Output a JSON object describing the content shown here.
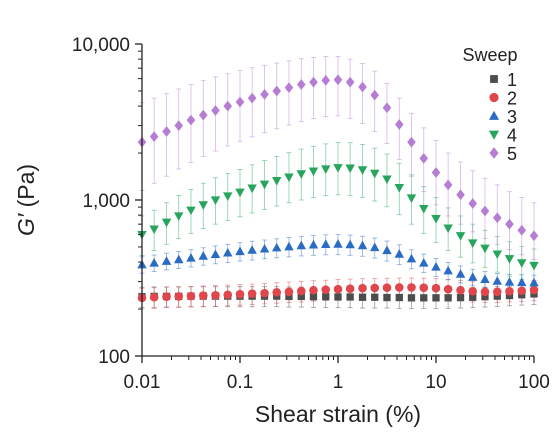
{
  "chart_data": {
    "type": "scatter",
    "xscale": "log",
    "yscale": "log",
    "xlim": [
      0.01,
      100
    ],
    "ylim": [
      100,
      10000
    ],
    "xlabel": "Shear strain (%)",
    "ylabel_italic": "G′",
    "ylabel_unit": " (Pa)",
    "x_ticks": [
      {
        "value": 0.01,
        "label": "0.01"
      },
      {
        "value": 0.1,
        "label": "0.1"
      },
      {
        "value": 1,
        "label": "1"
      },
      {
        "value": 10,
        "label": "10"
      },
      {
        "value": 100,
        "label": "100"
      }
    ],
    "y_ticks": [
      {
        "value": 100,
        "label": "100"
      },
      {
        "value": 1000,
        "label": "1,000"
      },
      {
        "value": 10000,
        "label": "10,000"
      }
    ],
    "legend": {
      "title": "Sweep",
      "position": "top-right"
    },
    "grid": false,
    "x": [
      0.01,
      0.0133,
      0.0178,
      0.0237,
      0.0316,
      0.0422,
      0.0562,
      0.075,
      0.1,
      0.133,
      0.178,
      0.237,
      0.316,
      0.422,
      0.562,
      0.75,
      1,
      1.33,
      1.78,
      2.37,
      3.16,
      4.22,
      5.62,
      7.5,
      10,
      13.3,
      17.8,
      23.7,
      31.6,
      42.2,
      56.2,
      75,
      100
    ],
    "series": [
      {
        "name": "1",
        "color": "#4d4d4d",
        "marker": "square",
        "values": [
          240,
          241,
          241,
          241,
          242,
          242,
          242,
          242,
          242,
          242,
          242,
          242,
          241,
          241,
          240,
          240,
          239,
          239,
          238,
          238,
          237,
          237,
          236,
          236,
          236,
          236,
          237,
          238,
          240,
          242,
          244,
          247,
          250
        ],
        "err_low": [
          205,
          205,
          206,
          206,
          207,
          207,
          207,
          207,
          207,
          207,
          207,
          207,
          206,
          206,
          205,
          205,
          204,
          204,
          203,
          203,
          203,
          202,
          202,
          202,
          202,
          202,
          203,
          204,
          206,
          208,
          210,
          212,
          214
        ],
        "err_high": [
          276,
          277,
          277,
          277,
          278,
          278,
          278,
          278,
          278,
          278,
          278,
          278,
          277,
          277,
          276,
          276,
          275,
          275,
          274,
          274,
          273,
          273,
          272,
          272,
          272,
          272,
          273,
          274,
          276,
          278,
          280,
          284,
          288
        ]
      },
      {
        "name": "2",
        "color": "#e0474c",
        "marker": "circle",
        "values": [
          236,
          238,
          240,
          241,
          242,
          244,
          245,
          247,
          249,
          251,
          253,
          256,
          258,
          261,
          264,
          266,
          268,
          270,
          272,
          273,
          274,
          275,
          275,
          274,
          272,
          268,
          264,
          260,
          258,
          258,
          260,
          262,
          265
        ],
        "err_low": [
          200,
          202,
          204,
          205,
          206,
          207,
          208,
          210,
          212,
          214,
          216,
          218,
          220,
          222,
          225,
          227,
          228,
          230,
          232,
          233,
          234,
          234,
          234,
          233,
          231,
          228,
          225,
          222,
          220,
          220,
          222,
          223,
          226
        ],
        "err_high": [
          272,
          274,
          277,
          278,
          279,
          281,
          283,
          285,
          287,
          289,
          292,
          295,
          298,
          301,
          304,
          306,
          309,
          311,
          313,
          314,
          315,
          316,
          316,
          315,
          313,
          309,
          304,
          299,
          297,
          297,
          299,
          302,
          305
        ]
      },
      {
        "name": "3",
        "color": "#2a6bc4",
        "marker": "triangle-up",
        "values": [
          385,
          395,
          405,
          415,
          425,
          437,
          448,
          458,
          468,
          477,
          486,
          494,
          502,
          510,
          516,
          520,
          522,
          518,
          510,
          496,
          475,
          450,
          420,
          395,
          372,
          352,
          335,
          320,
          310,
          302,
          298,
          296,
          295
        ],
        "err_low": [
          340,
          348,
          356,
          364,
          372,
          382,
          390,
          398,
          406,
          412,
          420,
          426,
          432,
          438,
          442,
          445,
          446,
          442,
          436,
          424,
          406,
          386,
          362,
          342,
          324,
          308,
          294,
          282,
          274,
          268,
          264,
          262,
          262
        ],
        "err_high": [
          432,
          444,
          456,
          468,
          480,
          494,
          508,
          520,
          532,
          544,
          554,
          564,
          574,
          584,
          592,
          598,
          600,
          596,
          586,
          570,
          546,
          516,
          480,
          450,
          422,
          398,
          378,
          360,
          348,
          338,
          334,
          332,
          330
        ]
      },
      {
        "name": "4",
        "color": "#27a55f",
        "marker": "triangle-down",
        "values": [
          600,
          650,
          720,
          790,
          860,
          930,
          1000,
          1060,
          1120,
          1190,
          1260,
          1330,
          1400,
          1470,
          1530,
          1580,
          1610,
          1600,
          1560,
          1480,
          1360,
          1200,
          1030,
          880,
          760,
          660,
          590,
          530,
          490,
          450,
          420,
          395,
          380
        ],
        "err_low": [
          440,
          475,
          520,
          565,
          610,
          655,
          700,
          740,
          780,
          825,
          870,
          915,
          960,
          1000,
          1035,
          1065,
          1080,
          1070,
          1040,
          985,
          905,
          805,
          700,
          610,
          535,
          475,
          430,
          395,
          370,
          345,
          325,
          310,
          300
        ],
        "err_high": [
          790,
          860,
          960,
          1070,
          1170,
          1280,
          1390,
          1480,
          1570,
          1680,
          1790,
          1900,
          2010,
          2120,
          2210,
          2290,
          2340,
          2330,
          2270,
          2150,
          1970,
          1720,
          1450,
          1220,
          1040,
          890,
          790,
          700,
          640,
          585,
          540,
          505,
          485
        ]
      },
      {
        "name": "5",
        "color": "#b57ed4",
        "marker": "diamond",
        "values": [
          2350,
          2550,
          2750,
          3000,
          3250,
          3500,
          3750,
          4000,
          4250,
          4500,
          4750,
          5000,
          5250,
          5500,
          5700,
          5850,
          5900,
          5700,
          5300,
          4700,
          3900,
          3050,
          2350,
          1850,
          1500,
          1250,
          1080,
          950,
          850,
          770,
          700,
          640,
          590
        ],
        "err_low": [
          1150,
          1280,
          1420,
          1580,
          1740,
          1900,
          2060,
          2220,
          2380,
          2540,
          2700,
          2860,
          3020,
          3180,
          3320,
          3420,
          3460,
          3340,
          3100,
          2750,
          2300,
          1820,
          1420,
          1130,
          930,
          790,
          700,
          625,
          565,
          520,
          480,
          445,
          415
        ],
        "err_high": [
          4200,
          4500,
          4800,
          5150,
          5500,
          5850,
          6150,
          6450,
          6750,
          7050,
          7300,
          7550,
          7800,
          8050,
          8200,
          8300,
          8300,
          8000,
          7500,
          6700,
          5600,
          4500,
          3600,
          2900,
          2400,
          2000,
          1750,
          1540,
          1380,
          1250,
          1130,
          1040,
          960
        ]
      }
    ]
  }
}
